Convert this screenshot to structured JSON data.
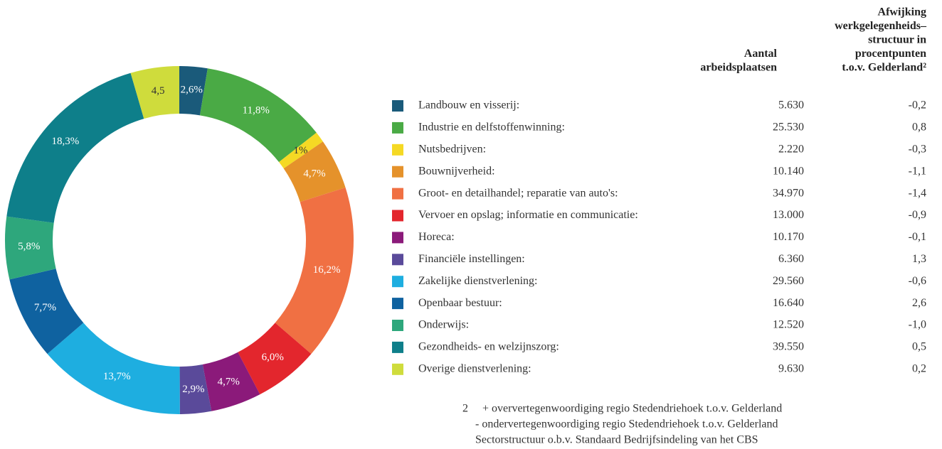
{
  "chart_data": {
    "type": "pie",
    "donut": true,
    "categories": [
      "Landbouw en visserij:",
      "Industrie en delfstoffenwinning:",
      "Nutsbedrijven:",
      "Bouwnijverheid:",
      "Groot- en detailhandel; reparatie van auto's:",
      "Vervoer en opslag; informatie en communicatie:",
      "Horeca:",
      "Financiële instellingen:",
      "Zakelijke dienstverlening:",
      "Openbaar bestuur:",
      "Onderwijs:",
      "Gezondheids- en welzijnszorg:",
      "Overige dienstverlening:"
    ],
    "values": [
      2.6,
      11.8,
      1,
      4.7,
      16.2,
      6.0,
      4.7,
      2.9,
      13.7,
      7.7,
      5.8,
      18.3,
      4.5
    ],
    "value_labels": [
      "2,6%",
      "11,8%",
      "1%",
      "4,7%",
      "16,2%",
      "6,0%",
      "4,7%",
      "2,9%",
      "13,7%",
      "7,7%",
      "5,8%",
      "18,3%",
      "4,5"
    ],
    "colors": [
      "#1a5a7a",
      "#4aaa45",
      "#f5d924",
      "#e5922b",
      "#f07043",
      "#e3262d",
      "#8b1a7a",
      "#5a4a9a",
      "#1eaee0",
      "#0f62a0",
      "#2ea77c",
      "#0e7f8a",
      "#cfdc3c"
    ]
  },
  "table": {
    "headers": [
      [
        "Aantal",
        "arbeidsplaatsen"
      ],
      [
        "Afwijking",
        "werkgelegenheids–",
        "structuur in",
        "procentpunten",
        "t.o.v. Gelderland²"
      ]
    ],
    "rows": [
      [
        "5.630",
        "-0,2"
      ],
      [
        "25.530",
        "0,8"
      ],
      [
        "2.220",
        "-0,3"
      ],
      [
        "10.140",
        "-1,1"
      ],
      [
        "34.970",
        "-1,4"
      ],
      [
        "13.000",
        "-0,9"
      ],
      [
        "10.170",
        "-0,1"
      ],
      [
        "6.360",
        "1,3"
      ],
      [
        "29.560",
        "-0,6"
      ],
      [
        "16.640",
        "2,6"
      ],
      [
        "12.520",
        "-1,0"
      ],
      [
        "39.550",
        "0,5"
      ],
      [
        "9.630",
        "0,2"
      ]
    ]
  },
  "footnote": {
    "marker": "2",
    "lines": [
      "+ oververtegenwoordiging regio Stedendriehoek t.o.v. Gelderland",
      "- ondervertegenwoordiging regio Stedendriehoek t.o.v. Gelderland",
      "Sectorstructuur o.b.v. Standaard Bedrijfsindeling van het CBS"
    ]
  }
}
